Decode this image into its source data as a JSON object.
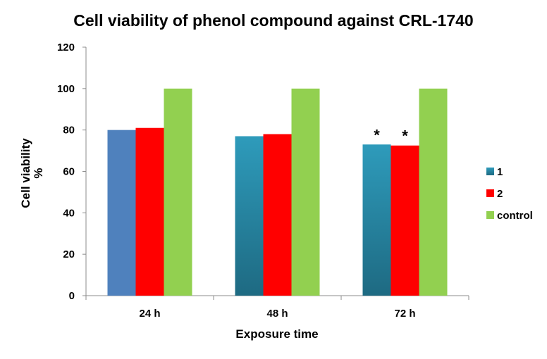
{
  "chart_data": {
    "type": "bar",
    "title": "Cell viability of phenol compound against CRL-1740",
    "xlabel": "Exposure time",
    "ylabel_lines": [
      "Cell viability",
      "%"
    ],
    "categories": [
      "24 h",
      "48 h",
      "72 h"
    ],
    "ylim": [
      0,
      120
    ],
    "yticks": [
      0,
      20,
      40,
      60,
      80,
      100,
      120
    ],
    "grid": false,
    "legend_position": "right",
    "series": [
      {
        "name": "1",
        "values": [
          80,
          77,
          73
        ],
        "color": "#2a8fae"
      },
      {
        "name": "2",
        "values": [
          81,
          78,
          72.5
        ],
        "color": "#ff0000"
      },
      {
        "name": "control",
        "values": [
          100,
          100,
          100
        ],
        "color": "#92d050"
      }
    ],
    "annotations": [
      {
        "text": "*",
        "category": "72 h",
        "series": "1"
      },
      {
        "text": "*",
        "category": "72 h",
        "series": "2"
      }
    ]
  }
}
